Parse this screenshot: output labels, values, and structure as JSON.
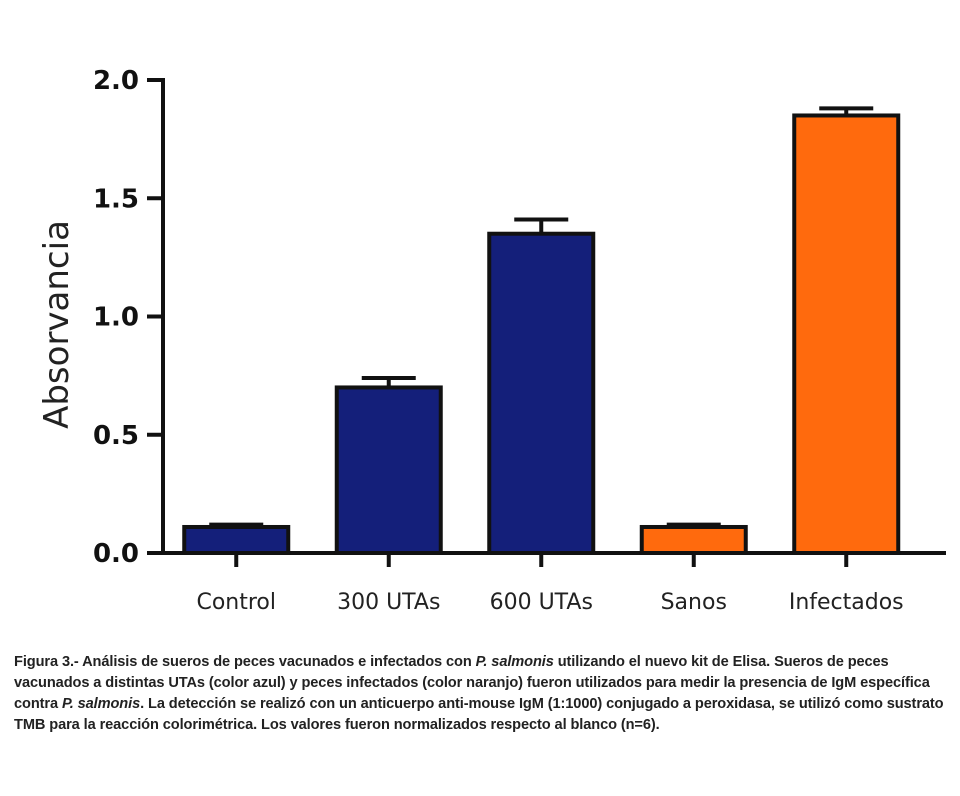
{
  "chart_data": {
    "type": "bar",
    "title": "",
    "xlabel": "",
    "ylabel": "Absorvancia",
    "ylim": [
      0,
      2.0
    ],
    "yticks": [
      0.0,
      0.5,
      1.0,
      1.5,
      2.0
    ],
    "ytick_labels": [
      "0.0",
      "0.5",
      "1.0",
      "1.5",
      "2.0"
    ],
    "categories": [
      "Control",
      "300 UTAs",
      "600 UTAs",
      "Sanos",
      "Infectados"
    ],
    "values": [
      0.11,
      0.7,
      1.35,
      0.11,
      1.85
    ],
    "errors": [
      0.01,
      0.04,
      0.06,
      0.01,
      0.03
    ],
    "bar_colors": [
      "#141f7a",
      "#141f7a",
      "#141f7a",
      "#ff6a0d",
      "#ff6a0d"
    ],
    "grid": false,
    "legend": "none"
  },
  "caption": {
    "segments": [
      {
        "text": "Figura 3.- Análisis de sueros de peces vacunados e infectados con ",
        "italic": false
      },
      {
        "text": "P. salmonis",
        "italic": true
      },
      {
        "text": " utilizando el nuevo kit de Elisa. Sueros de peces vacunados a distintas UTAs (color azul) y peces infectados (color naranjo) fueron utilizados para medir la presencia de IgM específica contra ",
        "italic": false
      },
      {
        "text": "P. salmonis",
        "italic": true
      },
      {
        "text": ". La detección se realizó con un anticuerpo anti-mouse IgM (1:1000) conjugado a peroxidasa, se utilizó como sustrato TMB para la reacción colorimétrica. Los valores fueron normalizados respecto al blanco (n=6).",
        "italic": false
      }
    ]
  }
}
